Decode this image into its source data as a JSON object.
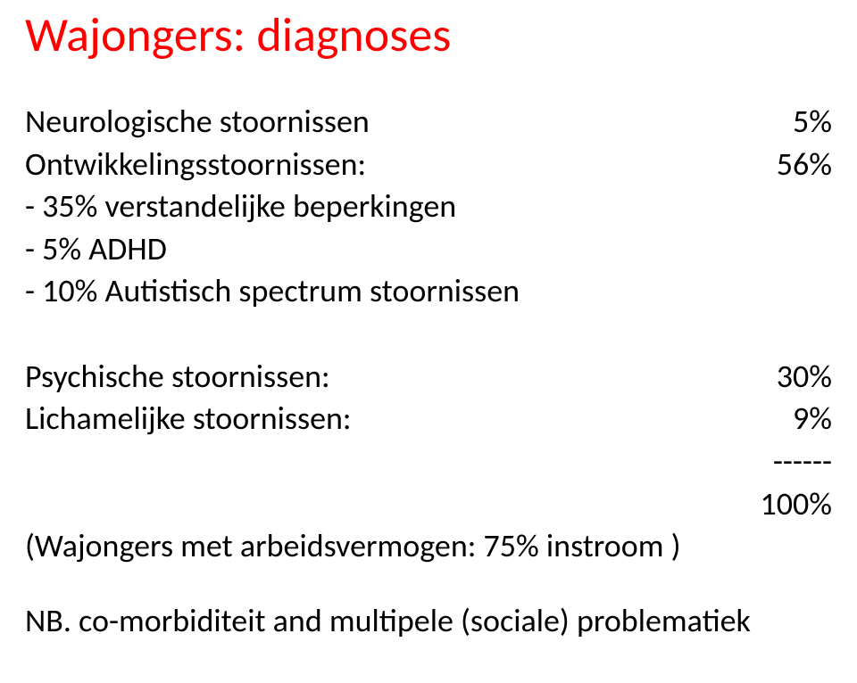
{
  "title": "Wajongers: diagnoses",
  "title_color": "#ff0000",
  "body_color": "#000000",
  "background_color": "#ffffff",
  "title_fontsize": 54,
  "body_fontsize": 36,
  "rows": {
    "neuro": {
      "label": "Neurologische stoornissen",
      "val": "5%"
    },
    "ontwik": {
      "label": "Ontwikkelingsstoornissen:",
      "val": "56%"
    },
    "sub1": {
      "label": "- 35% verstandelijke beperkingen"
    },
    "sub2": {
      "label": "-   5% ADHD"
    },
    "sub3": {
      "label": "- 10% Autistisch spectrum stoornissen"
    },
    "psych": {
      "label": "Psychische stoornissen:",
      "val": "30%"
    },
    "lich": {
      "label": "Lichamelijke stoornissen:",
      "val": "9%"
    },
    "rule": {
      "val": "------"
    },
    "total": {
      "val": "100%"
    },
    "waj": {
      "label": "(Wajongers met arbeidsvermogen: 75% instroom )"
    }
  },
  "nb": "NB. co-morbiditeit and multipele (sociale) problematiek"
}
